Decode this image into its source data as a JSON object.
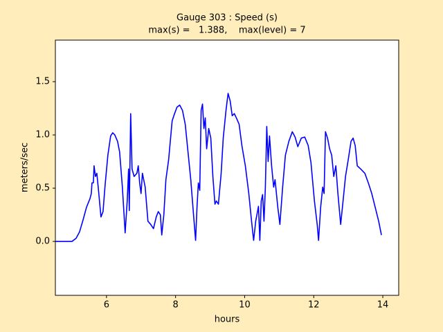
{
  "chart_data": {
    "type": "line",
    "title": "Gauge 303 : Speed (s)",
    "subtitle": "max(s) =   1.388,    max(level) = 7",
    "x_label": "hours",
    "y_label": "meters/sec",
    "xlim": [
      4.52,
      14.46
    ],
    "ylim": [
      -0.506,
      1.89
    ],
    "xticks": [
      6,
      8,
      10,
      12,
      14
    ],
    "yticks": [
      {
        "value": 0,
        "label": "0.0"
      },
      0.5,
      {
        "value": 1,
        "label": "1.0"
      },
      1.5
    ],
    "grid": false,
    "series": [
      {
        "color": "#0000ff",
        "x": [
          4.52,
          5.0,
          5.12,
          5.22,
          5.32,
          5.42,
          5.52,
          5.56,
          5.58,
          5.62,
          5.64,
          5.68,
          5.72,
          5.76,
          5.84,
          5.9,
          5.96,
          6.04,
          6.12,
          6.18,
          6.24,
          6.32,
          6.38,
          6.46,
          6.54,
          6.6,
          6.64,
          6.66,
          6.7,
          6.74,
          6.8,
          6.88,
          6.92,
          6.96,
          7.0,
          7.04,
          7.12,
          7.2,
          7.28,
          7.36,
          7.44,
          7.5,
          7.56,
          7.6,
          7.66,
          7.72,
          7.8,
          7.9,
          7.96,
          8.04,
          8.12,
          8.2,
          8.28,
          8.36,
          8.44,
          8.52,
          8.58,
          8.62,
          8.66,
          8.7,
          8.74,
          8.78,
          8.82,
          8.86,
          8.9,
          8.96,
          9.02,
          9.08,
          9.14,
          9.18,
          9.24,
          9.32,
          9.38,
          9.46,
          9.52,
          9.58,
          9.64,
          9.7,
          9.76,
          9.84,
          9.92,
          10.02,
          10.12,
          10.2,
          10.26,
          10.32,
          10.4,
          10.44,
          10.48,
          10.52,
          10.56,
          10.6,
          10.64,
          10.68,
          10.72,
          10.78,
          10.84,
          10.88,
          10.96,
          11.02,
          11.1,
          11.18,
          11.28,
          11.38,
          11.46,
          11.54,
          11.64,
          11.74,
          11.84,
          11.92,
          12.02,
          12.1,
          12.14,
          12.2,
          12.26,
          12.3,
          12.34,
          12.4,
          12.46,
          12.52,
          12.58,
          12.64,
          12.7,
          12.78,
          12.84,
          12.92,
          13.0,
          13.08,
          13.14,
          13.2,
          13.26,
          13.36,
          13.48,
          13.58,
          13.68,
          13.78,
          13.88,
          13.96
        ],
        "values": [
          0,
          0,
          0.03,
          0.09,
          0.2,
          0.32,
          0.4,
          0.45,
          0.55,
          0.55,
          0.71,
          0.61,
          0.64,
          0.51,
          0.23,
          0.28,
          0.53,
          0.81,
          0.99,
          1.02,
          1.0,
          0.94,
          0.84,
          0.51,
          0.08,
          0.38,
          0.68,
          0.29,
          1.2,
          0.68,
          0.61,
          0.64,
          0.71,
          0.55,
          0.45,
          0.64,
          0.51,
          0.19,
          0.16,
          0.12,
          0.23,
          0.28,
          0.25,
          0.06,
          0.25,
          0.58,
          0.77,
          1.13,
          1.19,
          1.26,
          1.28,
          1.23,
          1.1,
          0.84,
          0.58,
          0.25,
          0.01,
          0.32,
          0.55,
          0.48,
          1.23,
          1.29,
          1.06,
          1.16,
          0.87,
          1.06,
          0.97,
          0.61,
          0.35,
          0.38,
          0.35,
          0.64,
          0.97,
          1.23,
          1.39,
          1.32,
          1.18,
          1.2,
          1.16,
          1.1,
          0.9,
          0.71,
          0.45,
          0.19,
          0.01,
          0.19,
          0.33,
          0.01,
          0.38,
          0.44,
          0.19,
          0.51,
          1.08,
          0.75,
          0.99,
          0.71,
          0.51,
          0.58,
          0.32,
          0.16,
          0.51,
          0.81,
          0.94,
          1.03,
          0.98,
          0.89,
          0.97,
          0.98,
          0.9,
          0.74,
          0.38,
          0.16,
          0.01,
          0.32,
          0.51,
          0.45,
          1.03,
          0.97,
          0.87,
          0.81,
          0.61,
          0.71,
          0.45,
          0.16,
          0.35,
          0.61,
          0.77,
          0.94,
          0.97,
          0.9,
          0.71,
          0.68,
          0.64,
          0.55,
          0.45,
          0.32,
          0.19,
          0.06
        ]
      }
    ]
  }
}
